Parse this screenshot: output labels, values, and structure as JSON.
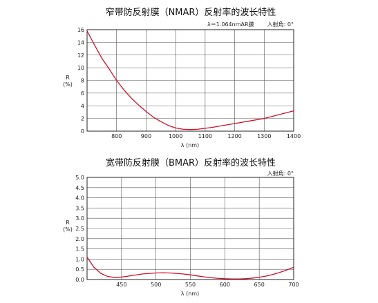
{
  "chart_data": [
    {
      "type": "line",
      "title": "窄带防反射膜（NMAR）反射率的波长特性",
      "subtitle": "λ＝1.064nmAR膜",
      "note": "入射角: 0°",
      "xlabel": "λ (nm)",
      "ylabel": [
        "R",
        "(%)"
      ],
      "xlim": [
        700,
        1400
      ],
      "ylim": [
        0,
        16
      ],
      "xticks": [
        800,
        900,
        1000,
        1100,
        1200,
        1300,
        1400
      ],
      "xtick_labels": [
        "800",
        "900",
        "1000",
        "1100",
        "1200",
        "1300",
        "1400"
      ],
      "yticks": [
        0,
        2,
        4,
        6,
        8,
        10,
        12,
        14,
        16
      ],
      "ytick_labels": [
        "0",
        "2",
        "4",
        "6",
        "8",
        "10",
        "12",
        "14",
        "16"
      ],
      "grid": true,
      "line_color": "#d0102a",
      "series": [
        {
          "x": [
            700,
            725,
            750,
            775,
            800,
            825,
            850,
            875,
            900,
            925,
            950,
            975,
            1000,
            1025,
            1050,
            1075,
            1100,
            1125,
            1150,
            1200,
            1250,
            1300,
            1350,
            1400
          ],
          "y": [
            15.8,
            13.6,
            11.5,
            9.8,
            8.0,
            6.5,
            5.2,
            4.1,
            3.1,
            2.2,
            1.5,
            0.9,
            0.5,
            0.3,
            0.25,
            0.3,
            0.45,
            0.6,
            0.8,
            1.2,
            1.6,
            2.0,
            2.6,
            3.2
          ]
        }
      ]
    },
    {
      "type": "line",
      "title": "宽带防反射膜（BMAR）反射率的波长特性",
      "note": "入射角: 0°",
      "xlabel": "λ (nm)",
      "ylabel": [
        "R",
        "(%)"
      ],
      "xlim": [
        400,
        700
      ],
      "ylim": [
        0,
        5
      ],
      "xticks": [
        450,
        500,
        550,
        600,
        650,
        700
      ],
      "xtick_labels": [
        "450",
        "500",
        "550",
        "600",
        "650",
        "700"
      ],
      "yticks": [
        0,
        0.5,
        1.0,
        1.5,
        2.0,
        2.5,
        3.0,
        3.5,
        4.0,
        4.5,
        5.0
      ],
      "ytick_labels": [
        "0.0",
        "0.5",
        "1.0",
        "1.5",
        "2.0",
        "2.5",
        "3.0",
        "3.5",
        "4.0",
        "4.5",
        "5.0"
      ],
      "grid": true,
      "line_color": "#d0102a",
      "series": [
        {
          "x": [
            400,
            410,
            420,
            430,
            440,
            450,
            460,
            470,
            480,
            490,
            500,
            510,
            520,
            530,
            540,
            550,
            560,
            570,
            580,
            590,
            600,
            610,
            620,
            630,
            640,
            650,
            660,
            670,
            680,
            690,
            700
          ],
          "y": [
            1.1,
            0.6,
            0.3,
            0.15,
            0.1,
            0.12,
            0.17,
            0.22,
            0.27,
            0.3,
            0.32,
            0.33,
            0.32,
            0.3,
            0.27,
            0.23,
            0.18,
            0.13,
            0.09,
            0.06,
            0.04,
            0.03,
            0.03,
            0.04,
            0.07,
            0.11,
            0.17,
            0.25,
            0.35,
            0.47,
            0.6
          ]
        }
      ]
    }
  ]
}
